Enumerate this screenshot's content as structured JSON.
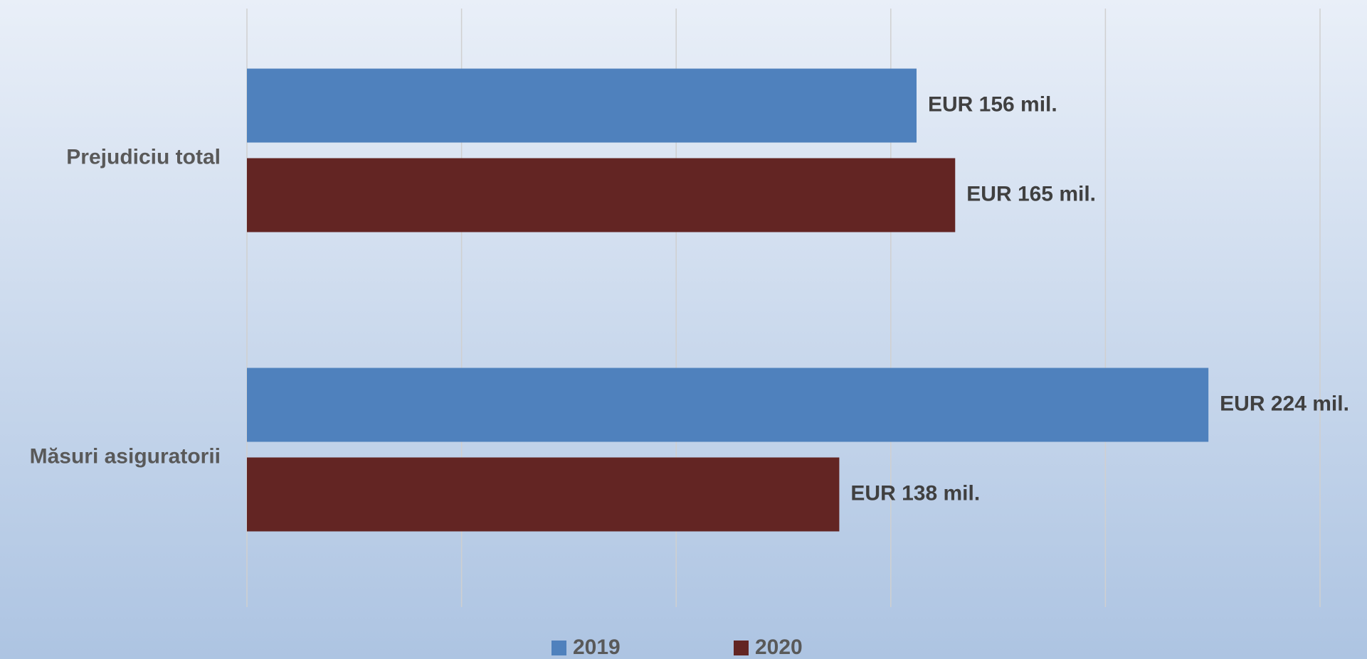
{
  "chart_data": {
    "type": "bar",
    "orientation": "horizontal",
    "categories": [
      "Prejudiciu total",
      "Măsuri asiguratorii"
    ],
    "series": [
      {
        "name": "2019",
        "color": "#4f81bd",
        "values": [
          156,
          224
        ],
        "value_labels": [
          "EUR 156 mil.",
          "EUR 224 mil."
        ]
      },
      {
        "name": "2020",
        "color": "#632523",
        "values": [
          165,
          138
        ],
        "value_labels": [
          "EUR 165 mil.",
          "EUR 138 mil."
        ]
      }
    ],
    "xlim": [
      0,
      250
    ],
    "xticks": [
      0,
      50,
      100,
      150,
      200,
      250
    ],
    "grid": true,
    "legend": "bottom"
  }
}
